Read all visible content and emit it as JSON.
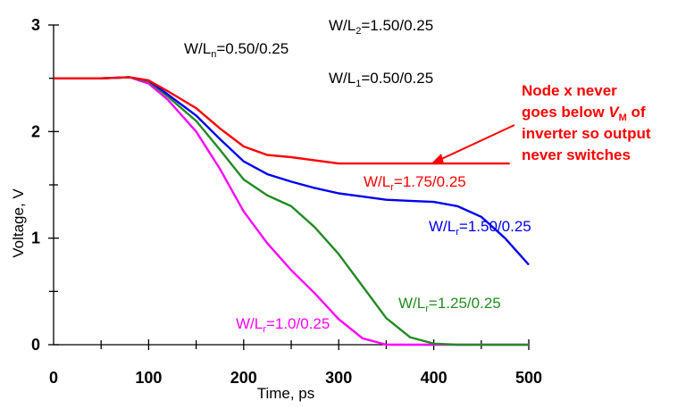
{
  "chart_data": {
    "type": "line",
    "xlabel": "Time, ps",
    "ylabel": "Voltage, V",
    "xlim": [
      0,
      500
    ],
    "ylim": [
      0,
      3
    ],
    "xticks": [
      "0",
      "100",
      "200",
      "300",
      "400",
      "500"
    ],
    "yticks": [
      "0",
      "1",
      "2",
      "3"
    ],
    "grid": false,
    "series": [
      {
        "label": {
          "pre": "W/L",
          "sub": "r",
          "post": "=1.75/0.25"
        },
        "color": "#ff0000",
        "x": [
          0,
          50,
          80,
          100,
          120,
          150,
          175,
          200,
          225,
          250,
          275,
          300,
          350,
          400,
          450,
          480
        ],
        "y": [
          2.5,
          2.5,
          2.51,
          2.48,
          2.38,
          2.22,
          2.03,
          1.86,
          1.78,
          1.76,
          1.73,
          1.7,
          1.7,
          1.7,
          1.7,
          1.7
        ]
      },
      {
        "label": {
          "pre": "W/L",
          "sub": "r",
          "post": "=1.50/0.25"
        },
        "color": "#0000ee",
        "x": [
          0,
          50,
          80,
          100,
          120,
          150,
          175,
          200,
          225,
          250,
          275,
          300,
          325,
          350,
          375,
          400,
          425,
          450,
          475,
          500
        ],
        "y": [
          2.5,
          2.5,
          2.51,
          2.48,
          2.35,
          2.15,
          1.93,
          1.72,
          1.6,
          1.53,
          1.47,
          1.42,
          1.39,
          1.36,
          1.35,
          1.34,
          1.3,
          1.2,
          1.0,
          0.75
        ]
      },
      {
        "label": {
          "pre": "W/L",
          "sub": "r",
          "post": "=1.25/0.25"
        },
        "color": "#228b22",
        "x": [
          0,
          50,
          80,
          100,
          120,
          150,
          175,
          200,
          225,
          250,
          275,
          300,
          325,
          350,
          375,
          400,
          425,
          450,
          475,
          500
        ],
        "y": [
          2.5,
          2.5,
          2.51,
          2.47,
          2.33,
          2.1,
          1.83,
          1.55,
          1.4,
          1.3,
          1.1,
          0.85,
          0.55,
          0.25,
          0.07,
          0.01,
          0.0,
          0.0,
          0.0,
          0.0
        ]
      },
      {
        "label": {
          "pre": "W/L",
          "sub": "r",
          "post": "=1.0/0.25"
        },
        "color": "#ff00ff",
        "x": [
          0,
          50,
          80,
          100,
          120,
          150,
          175,
          200,
          225,
          250,
          275,
          300,
          325,
          350,
          375,
          400,
          425,
          450,
          475,
          500
        ],
        "y": [
          2.5,
          2.5,
          2.51,
          2.45,
          2.3,
          2.0,
          1.65,
          1.25,
          0.95,
          0.7,
          0.48,
          0.24,
          0.06,
          0.0,
          0.0,
          0.0,
          0.0,
          0.0,
          0.0,
          0.0
        ]
      }
    ],
    "annotations": [
      {
        "pre": "W/L",
        "sub": "2",
        "post": "=1.50/0.25"
      },
      {
        "pre": "W/L",
        "sub": "n",
        "post": "=0.50/0.25"
      },
      {
        "pre": "W/L",
        "sub": "1",
        "post": "=0.50/0.25"
      }
    ],
    "callout": {
      "lines": [
        "Node x never",
        "goes below ",
        "inverter so output",
        "never switches"
      ],
      "vm_symbol": "V",
      "vm_sub": "M",
      "vm_post": " of",
      "color": "#ff0000"
    }
  }
}
